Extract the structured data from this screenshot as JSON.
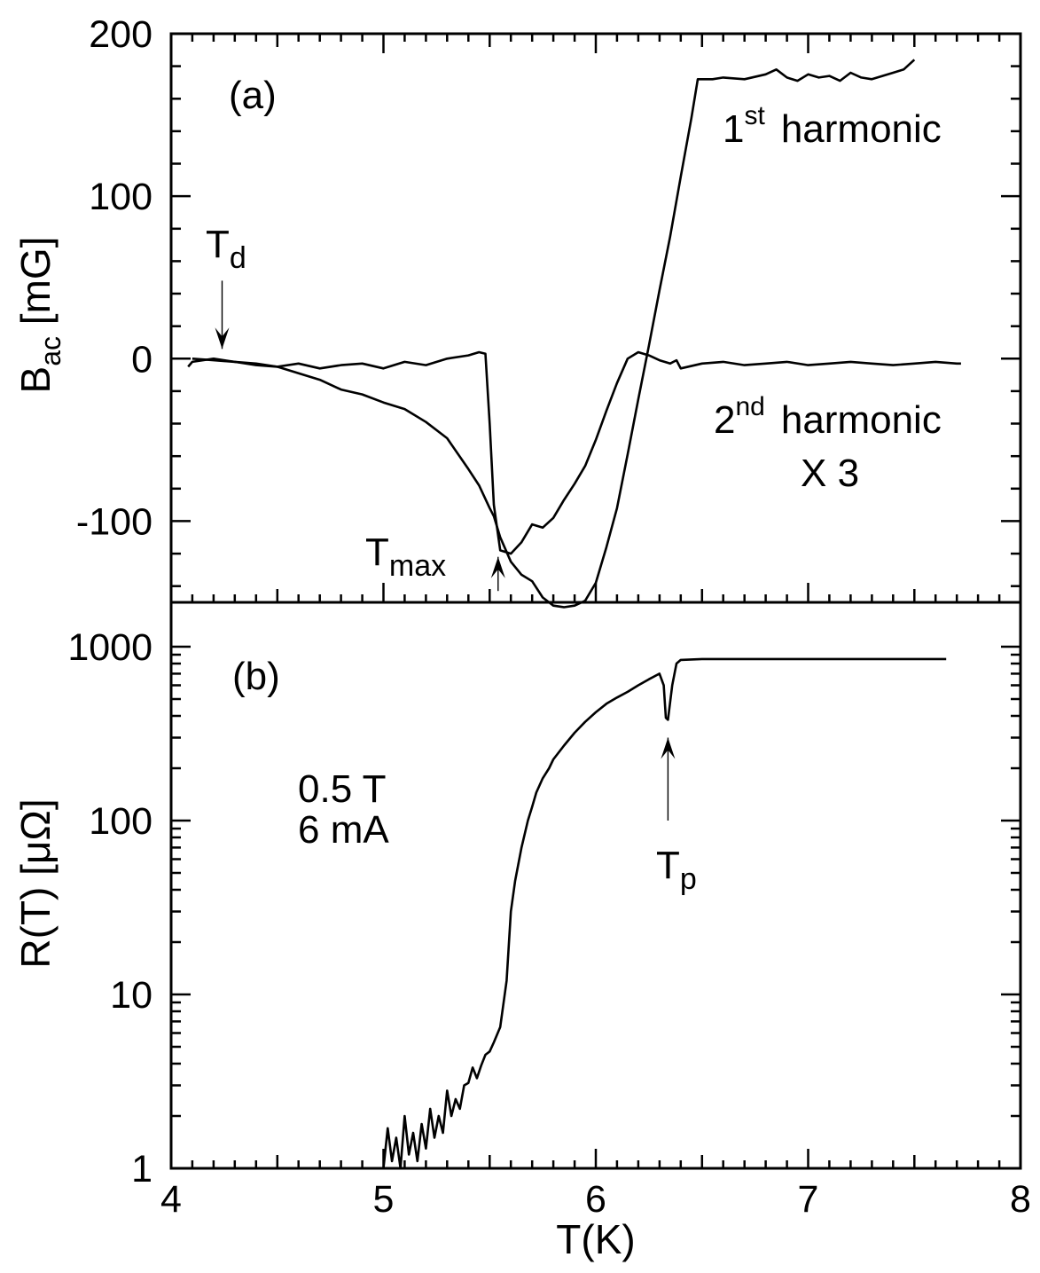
{
  "chart_data": [
    {
      "panel_label": "(a)",
      "type": "line",
      "ylabel_main": "B",
      "ylabel_sub": "ac",
      "ylabel_unit": " [mG]",
      "xlim": [
        4,
        8
      ],
      "ylim": [
        -150,
        200
      ],
      "yticks": [
        200,
        100,
        0,
        -100
      ],
      "ytick_labels": [
        "200",
        "100",
        "0",
        "-100"
      ],
      "series": [
        {
          "label_main": "1",
          "label_sup": "st",
          "label_rest": "harmonic",
          "x": [
            4.1,
            4.2,
            4.3,
            4.4,
            4.5,
            4.6,
            4.7,
            4.8,
            4.9,
            5.0,
            5.1,
            5.2,
            5.3,
            5.4,
            5.45,
            5.5,
            5.52,
            5.55,
            5.6,
            5.65,
            5.7,
            5.75,
            5.8,
            5.85,
            5.9,
            5.95,
            6.0,
            6.05,
            6.1,
            6.15,
            6.2,
            6.25,
            6.3,
            6.35,
            6.4,
            6.45,
            6.48,
            6.55,
            6.6,
            6.7,
            6.8,
            6.85,
            6.9,
            6.95,
            7.0,
            7.05,
            7.1,
            7.15,
            7.2,
            7.25,
            7.3,
            7.35,
            7.4,
            7.45,
            7.5
          ],
          "y": [
            0,
            -1,
            -2,
            -3,
            -5,
            -9,
            -13,
            -19,
            -22,
            -27,
            -31,
            -39,
            -49,
            -68,
            -78,
            -92,
            -97,
            -110,
            -125,
            -133,
            -137,
            -147,
            -152,
            -153,
            -152,
            -149,
            -138,
            -116,
            -92,
            -59,
            -25,
            8,
            42,
            75,
            112,
            148,
            172,
            172,
            173,
            172,
            175,
            178,
            173,
            171,
            175,
            173,
            174,
            171,
            176,
            173,
            172,
            174,
            176,
            178,
            184
          ]
        },
        {
          "label_main": "2",
          "label_sup": "nd",
          "label_rest": "harmonic",
          "label_extra": "X 3",
          "x": [
            4.08,
            4.1,
            4.2,
            4.3,
            4.4,
            4.5,
            4.6,
            4.7,
            4.8,
            4.9,
            5.0,
            5.1,
            5.2,
            5.3,
            5.4,
            5.45,
            5.48,
            5.5,
            5.52,
            5.55,
            5.6,
            5.65,
            5.7,
            5.75,
            5.8,
            5.85,
            5.9,
            5.95,
            6.0,
            6.05,
            6.1,
            6.15,
            6.2,
            6.25,
            6.3,
            6.35,
            6.38,
            6.4,
            6.5,
            6.6,
            6.7,
            6.8,
            6.9,
            7.0,
            7.1,
            7.2,
            7.3,
            7.4,
            7.5,
            7.6,
            7.7,
            7.72
          ],
          "y": [
            -5,
            -2,
            0,
            -2,
            -4,
            -5,
            -3,
            -6,
            -4,
            -3,
            -6,
            -2,
            -4,
            0,
            2,
            4,
            3,
            -40,
            -90,
            -118,
            -120,
            -113,
            -102,
            -104,
            -98,
            -87,
            -77,
            -66,
            -50,
            -32,
            -15,
            0,
            4,
            2,
            -1,
            -3,
            -1,
            -6,
            -3,
            -2,
            -4,
            -3,
            -2,
            -4,
            -3,
            -2,
            -3,
            -4,
            -3,
            -2,
            -3,
            -3
          ]
        }
      ],
      "annotations": [
        {
          "main": "T",
          "sub": "d",
          "arrow_x": 4.24,
          "arrow_from_y": 48,
          "arrow_to_y": 6
        },
        {
          "main": "T",
          "sub": "max",
          "arrow_x": 5.54,
          "arrow_from_y": -143,
          "arrow_to_y": -122
        }
      ]
    },
    {
      "panel_label": "(b)",
      "type": "line",
      "scale_y": "log",
      "ylabel": "R(T) [μΩ]",
      "xlabel": "T(K)",
      "xlim": [
        4,
        8
      ],
      "xticks": [
        4,
        5,
        6,
        7,
        8
      ],
      "xtick_labels": [
        "4",
        "5",
        "6",
        "7",
        "8"
      ],
      "ylim": [
        1,
        1800
      ],
      "yticks": [
        1,
        10,
        100,
        1000
      ],
      "ytick_labels": [
        "1",
        "10",
        "100",
        "1000"
      ],
      "conditions": [
        "0.5 T",
        "6 mA"
      ],
      "series": [
        {
          "x": [
            5.0,
            5.02,
            5.04,
            5.06,
            5.08,
            5.1,
            5.12,
            5.14,
            5.16,
            5.18,
            5.2,
            5.22,
            5.24,
            5.26,
            5.28,
            5.3,
            5.32,
            5.34,
            5.36,
            5.38,
            5.4,
            5.42,
            5.44,
            5.46,
            5.48,
            5.5,
            5.52,
            5.55,
            5.58,
            5.6,
            5.62,
            5.65,
            5.68,
            5.7,
            5.72,
            5.75,
            5.78,
            5.8,
            5.85,
            5.9,
            5.95,
            6.0,
            6.05,
            6.1,
            6.15,
            6.2,
            6.25,
            6.3,
            6.32,
            6.33,
            6.34,
            6.36,
            6.38,
            6.4,
            6.5,
            6.7,
            7.0,
            7.3,
            7.65
          ],
          "y": [
            1.0,
            1.7,
            1.1,
            1.5,
            1.0,
            2.0,
            1.2,
            1.6,
            1.1,
            1.8,
            1.3,
            2.2,
            1.5,
            2.0,
            1.6,
            2.8,
            2.0,
            2.5,
            2.2,
            3.0,
            3.1,
            3.8,
            3.3,
            3.9,
            4.5,
            4.7,
            5.3,
            6.5,
            12.0,
            30.0,
            45.0,
            70.0,
            100.0,
            120.0,
            145.0,
            175.0,
            200.0,
            225.0,
            270.0,
            320.0,
            370.0,
            420.0,
            470.0,
            510.0,
            550.0,
            600.0,
            650.0,
            700.0,
            600.0,
            390.0,
            380.0,
            600.0,
            800.0,
            840.0,
            850.0,
            850.0,
            850.0,
            850.0,
            850.0
          ]
        }
      ],
      "annotations": [
        {
          "main": "T",
          "sub": "p",
          "arrow_x": 6.34,
          "arrow_from_y": 100,
          "arrow_to_y": 300
        }
      ]
    }
  ]
}
